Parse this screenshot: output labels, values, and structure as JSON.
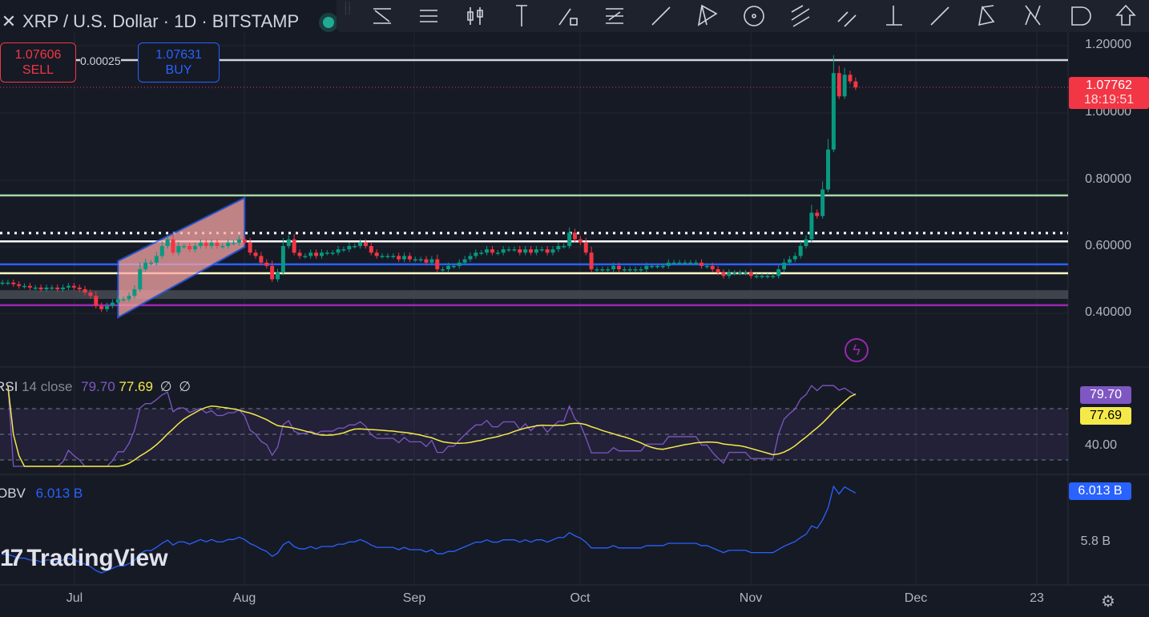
{
  "header": {
    "symbol_title": "XRP / U.S. Dollar · 1D · BITSTAMP",
    "close_icon": "close-icon",
    "market_status": "open"
  },
  "trade": {
    "sell_price": "1.07606",
    "sell_label": "SELL",
    "spread": "0.00025",
    "buy_price": "1.07631",
    "buy_label": "BUY"
  },
  "toolbar": {
    "tools": [
      "trend-line-fib-icon",
      "parallel-lines-icon",
      "candles-icon",
      "vertical-line-icon",
      "ray-box-icon",
      "fib-lines-icon",
      "trend-line-icon",
      "pitchfork-icon",
      "circle-icon",
      "parallel-channel-icon",
      "disjoint-channel-icon",
      "long-position-icon",
      "extended-line-icon",
      "triangle-pattern-icon",
      "abcd-pattern-icon",
      "callout-icon",
      "arrow-up-icon"
    ]
  },
  "price_axis": {
    "labels": [
      "1.20000",
      "1.00000",
      "0.80000",
      "0.60000",
      "0.40000"
    ],
    "current_price": "1.07762",
    "countdown": "18:19:51"
  },
  "rsi": {
    "label": "RSI",
    "params": "14 close",
    "value": "79.70",
    "ma_value": "77.69",
    "extra1": "∅",
    "extra2": "∅",
    "axis_label": "40.00"
  },
  "obv": {
    "label": "OBV",
    "value": "6.013 B",
    "axis_label": "5.8 B"
  },
  "time_axis": {
    "labels": [
      "Jul",
      "Aug",
      "Sep",
      "Oct",
      "Nov",
      "Dec",
      "23"
    ]
  },
  "branding": {
    "logo_text": "TradingView"
  },
  "colors": {
    "up": "#089981",
    "down": "#f23645",
    "rsi": "#7e57c2",
    "rsi_ma": "#f5e94a",
    "obv": "#2962ff"
  },
  "chart_data": {
    "type": "candlestick",
    "title": "XRP / U.S. Dollar · 1D · BITSTAMP",
    "x_start": "2024-06-17",
    "interval": "1D",
    "ylim": [
      0.3,
      1.25
    ],
    "closes": [
      0.49,
      0.49,
      0.485,
      0.48,
      0.48,
      0.475,
      0.475,
      0.47,
      0.475,
      0.475,
      0.47,
      0.475,
      0.48,
      0.475,
      0.47,
      0.46,
      0.45,
      0.42,
      0.41,
      0.42,
      0.43,
      0.44,
      0.44,
      0.45,
      0.47,
      0.53,
      0.55,
      0.55,
      0.57,
      0.6,
      0.62,
      0.58,
      0.6,
      0.6,
      0.59,
      0.6,
      0.61,
      0.6,
      0.61,
      0.6,
      0.6,
      0.61,
      0.61,
      0.62,
      0.61,
      0.58,
      0.57,
      0.55,
      0.54,
      0.5,
      0.52,
      0.6,
      0.62,
      0.58,
      0.57,
      0.57,
      0.58,
      0.57,
      0.58,
      0.58,
      0.58,
      0.59,
      0.59,
      0.6,
      0.6,
      0.61,
      0.6,
      0.58,
      0.57,
      0.57,
      0.57,
      0.57,
      0.56,
      0.57,
      0.56,
      0.56,
      0.56,
      0.55,
      0.56,
      0.53,
      0.53,
      0.54,
      0.54,
      0.55,
      0.56,
      0.57,
      0.58,
      0.58,
      0.59,
      0.58,
      0.58,
      0.59,
      0.59,
      0.59,
      0.58,
      0.59,
      0.58,
      0.59,
      0.59,
      0.58,
      0.59,
      0.6,
      0.6,
      0.64,
      0.62,
      0.61,
      0.58,
      0.53,
      0.53,
      0.53,
      0.53,
      0.54,
      0.53,
      0.53,
      0.53,
      0.53,
      0.53,
      0.54,
      0.54,
      0.54,
      0.54,
      0.55,
      0.55,
      0.55,
      0.55,
      0.55,
      0.55,
      0.54,
      0.54,
      0.53,
      0.52,
      0.51,
      0.52,
      0.52,
      0.52,
      0.52,
      0.51,
      0.51,
      0.51,
      0.51,
      0.51,
      0.53,
      0.55,
      0.56,
      0.57,
      0.6,
      0.62,
      0.7,
      0.69,
      0.77,
      0.89,
      1.12,
      1.05,
      1.115,
      1.095,
      1.077
    ],
    "horizontal_levels": [
      {
        "price": 1.159,
        "color": "#d1d4dc",
        "style": "solid"
      },
      {
        "price": 0.752,
        "color": "#a5d6a7",
        "style": "solid"
      },
      {
        "price": 0.639,
        "color": "#ffffff",
        "style": "dotted"
      },
      {
        "price": 0.614,
        "color": "#ffffff",
        "style": "solid"
      },
      {
        "price": 0.545,
        "color": "#2962ff",
        "style": "solid"
      },
      {
        "price": 0.518,
        "color": "#fff9c4",
        "style": "solid"
      },
      {
        "price": 0.422,
        "color": "#9c27b0",
        "style": "solid"
      }
    ],
    "zone": {
      "from": 0.441,
      "to": 0.467
    },
    "channel": {
      "start": "2024-07-08",
      "end": "2024-07-31",
      "upper": [
        0.555,
        0.745
      ],
      "lower": [
        0.385,
        0.597
      ]
    },
    "rsi_levels": [
      70,
      50,
      30
    ]
  }
}
